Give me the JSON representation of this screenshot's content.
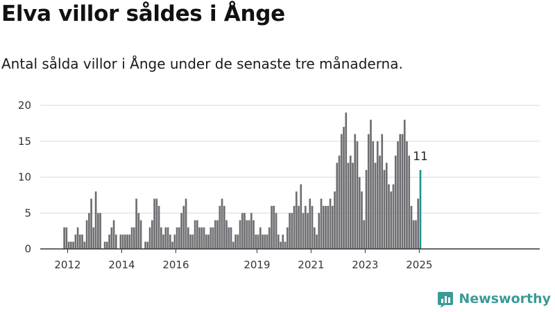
{
  "title": "Elva villor såldes i Ånge",
  "subtitle": "Antal sålda villor i Ånge under de senaste tre månaderna.",
  "brand": "Newsworthy",
  "colors": {
    "bar": "#6e6e72",
    "highlight": "#1f9490",
    "grid": "#d9d9d9",
    "axis": "#333333",
    "brand": "#3a9a98"
  },
  "chart_data": {
    "type": "bar",
    "xlabel": "",
    "ylabel": "",
    "ylim": [
      0,
      20
    ],
    "yticks": [
      0,
      5,
      10,
      15,
      20
    ],
    "grid": true,
    "x_start": "2011-11",
    "xticks": [
      "2012",
      "2014",
      "2016",
      "2019",
      "2021",
      "2023",
      "2025"
    ],
    "values": [
      3,
      3,
      1,
      1,
      1,
      2,
      3,
      2,
      2,
      1,
      4,
      5,
      7,
      3,
      8,
      5,
      5,
      0,
      1,
      1,
      2,
      3,
      4,
      2,
      0,
      2,
      2,
      2,
      2,
      2,
      3,
      3,
      7,
      5,
      4,
      0,
      1,
      1,
      3,
      4,
      7,
      7,
      6,
      3,
      2,
      3,
      3,
      2,
      1,
      2,
      3,
      3,
      5,
      6,
      7,
      3,
      2,
      2,
      4,
      4,
      3,
      3,
      3,
      2,
      2,
      3,
      3,
      4,
      4,
      6,
      7,
      6,
      4,
      3,
      3,
      1,
      2,
      2,
      4,
      5,
      5,
      4,
      4,
      5,
      4,
      2,
      2,
      3,
      2,
      2,
      2,
      3,
      6,
      6,
      5,
      2,
      1,
      2,
      1,
      3,
      5,
      5,
      6,
      8,
      6,
      9,
      5,
      6,
      5,
      7,
      6,
      3,
      2,
      5,
      7,
      6,
      6,
      6,
      7,
      6,
      8,
      12,
      13,
      16,
      17,
      19,
      12,
      13,
      12,
      16,
      15,
      10,
      8,
      4,
      11,
      16,
      18,
      15,
      12,
      15,
      13,
      16,
      11,
      12,
      9,
      8,
      9,
      13,
      15,
      16,
      16,
      18,
      15,
      13,
      6,
      4,
      4,
      7,
      11
    ],
    "highlight_label": "11"
  }
}
